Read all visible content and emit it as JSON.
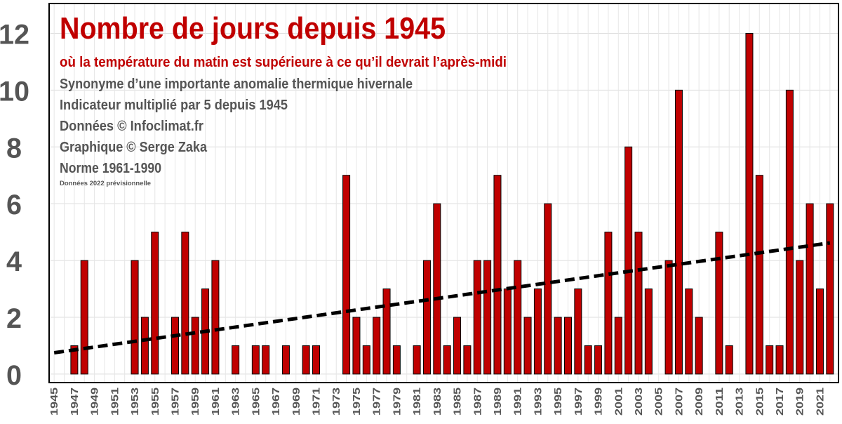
{
  "chart_data": {
    "type": "bar",
    "title": "Nombre de jours depuis 1945",
    "subtitle": "où la température du matin est supérieure à ce qu’il devrait l’après-midi",
    "notes": [
      "Synonyme d’une importante anomalie thermique hivernale",
      "Indicateur multiplié par 5 depuis 1945",
      "Données © Infoclimat.fr",
      "Graphique © Serge Zaka",
      "Norme 1961-1990"
    ],
    "footnote": "Données 2022 prévisionnelle",
    "categories": [
      "1945",
      null,
      "1947",
      null,
      "1949",
      null,
      "1951",
      null,
      "1953",
      null,
      "1955",
      null,
      "1957",
      null,
      "1959",
      null,
      "1961",
      null,
      "1963",
      null,
      "1965",
      null,
      "1967",
      null,
      "1969",
      null,
      "1971",
      null,
      "1973",
      null,
      "1975",
      null,
      "1977",
      null,
      "1979",
      null,
      "1981",
      null,
      "1983",
      null,
      "1985",
      null,
      "1987",
      null,
      "1989",
      null,
      "1991",
      null,
      "1993",
      null,
      "1995",
      null,
      "1997",
      null,
      "1999",
      null,
      "2001",
      null,
      "2003",
      null,
      "2005",
      null,
      "2007",
      null,
      "2009",
      null,
      "2011",
      null,
      "2013",
      null,
      "2015",
      null,
      "2017",
      null,
      "2019",
      null,
      "2021",
      null
    ],
    "values": [
      0,
      0,
      1,
      4,
      0,
      0,
      0,
      0,
      4,
      2,
      5,
      0,
      2,
      5,
      2,
      3,
      4,
      0,
      1,
      0,
      1,
      1,
      0,
      1,
      0,
      1,
      1,
      0,
      0,
      7,
      2,
      1,
      2,
      3,
      1,
      0,
      1,
      4,
      6,
      1,
      2,
      1,
      4,
      4,
      7,
      3,
      4,
      2,
      3,
      6,
      2,
      2,
      3,
      1,
      1,
      5,
      2,
      8,
      5,
      3,
      0,
      4,
      10,
      3,
      2,
      0,
      5,
      1,
      0,
      12,
      7,
      1,
      1,
      10,
      4,
      6,
      3,
      6
    ],
    "color": "#c00000",
    "trend": [
      0.75,
      4.62
    ],
    "ylim": [
      -0.3,
      13.05
    ],
    "yticks": [
      0,
      2,
      4,
      6,
      8,
      10,
      12
    ],
    "grid": true
  }
}
